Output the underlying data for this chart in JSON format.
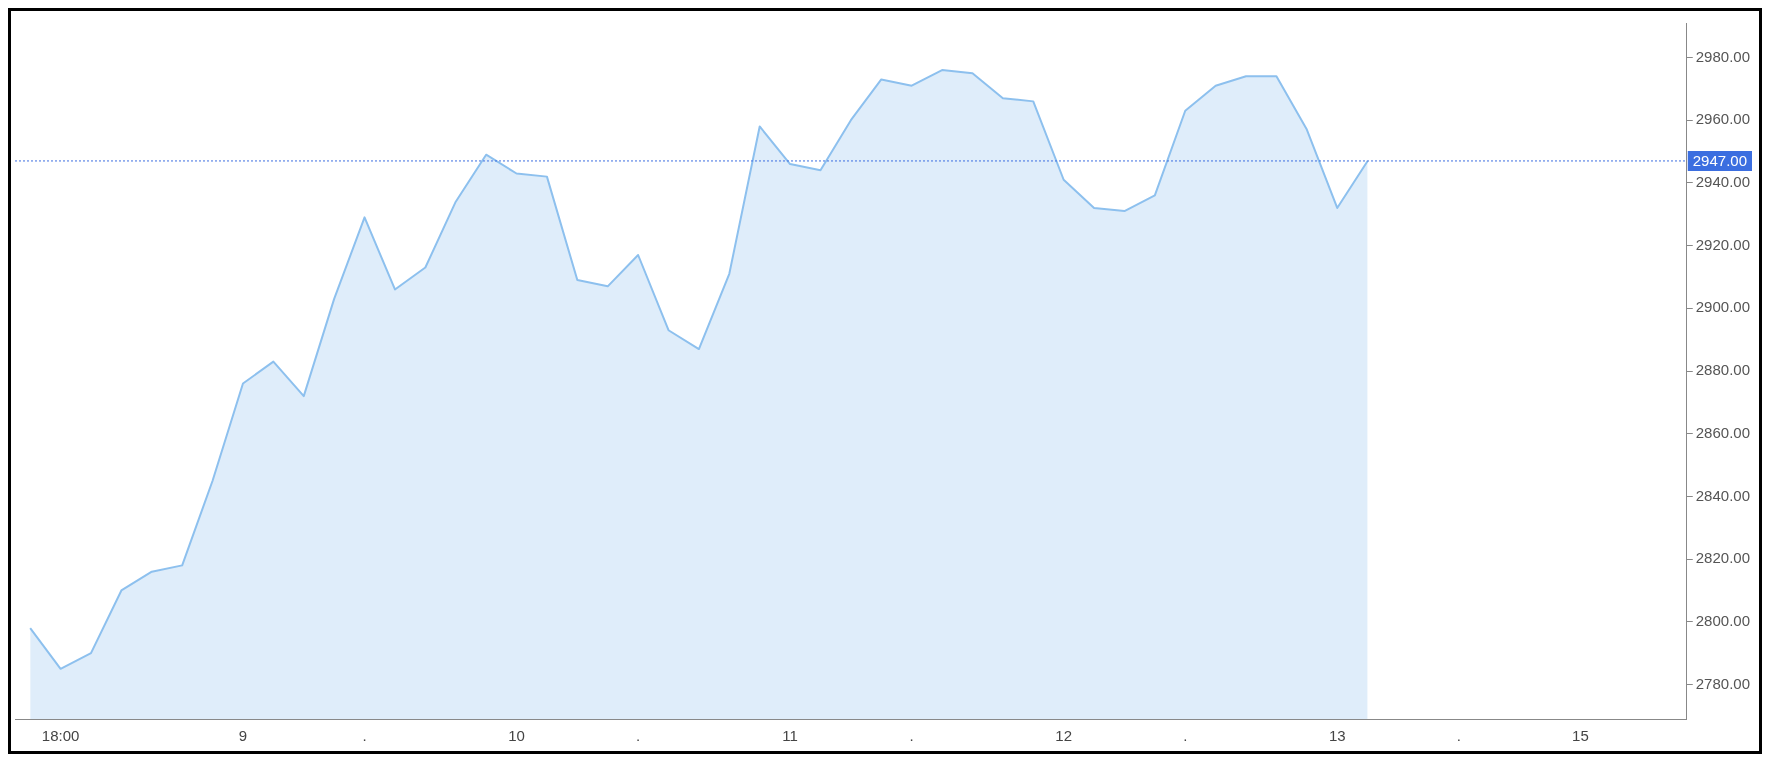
{
  "chart_data": {
    "type": "area",
    "categories": [
      null,
      "18:00",
      null,
      null,
      null,
      null,
      null,
      "9",
      null,
      null,
      null,
      ".",
      null,
      null,
      null,
      null,
      "10",
      null,
      null,
      null,
      ".",
      null,
      null,
      null,
      null,
      "11",
      null,
      null,
      null,
      ".",
      null,
      null,
      null,
      null,
      "12",
      null,
      null,
      null,
      ".",
      null,
      null,
      null,
      null,
      "13",
      null,
      null,
      null,
      ".",
      null,
      null,
      null,
      "15",
      null,
      null,
      null
    ],
    "series": [
      {
        "color": "#8dc0ee",
        "values": [
          2798,
          2785,
          2790,
          2810,
          2816,
          2818,
          2845,
          2876,
          2883,
          2872,
          2903,
          2929,
          2906,
          2913,
          2934,
          2949,
          2943,
          2942,
          2909,
          2907,
          2917,
          2893,
          2887,
          2911,
          2958,
          2946,
          2944,
          2960,
          2973,
          2971,
          2976,
          2975,
          2967,
          2966,
          2941,
          2932,
          2931,
          2936,
          2963,
          2971,
          2974,
          2974,
          2957,
          2932,
          2947,
          null,
          null,
          null,
          null,
          null,
          null,
          null,
          null,
          null,
          null
        ]
      }
    ],
    "ylim": [
      2769,
      2991
    ],
    "yticks": [
      {
        "value": 2780,
        "label": "2780.00"
      },
      {
        "value": 2800,
        "label": "2800.00"
      },
      {
        "value": 2820,
        "label": "2820.00"
      },
      {
        "value": 2840,
        "label": "2840.00"
      },
      {
        "value": 2860,
        "label": "2860.00"
      },
      {
        "value": 2880,
        "label": "2880.00"
      },
      {
        "value": 2900,
        "label": "2900.00"
      },
      {
        "value": 2920,
        "label": "2920.00"
      },
      {
        "value": 2940,
        "label": "2940.00"
      },
      {
        "value": 2960,
        "label": "2960.00"
      },
      {
        "value": 2980,
        "label": "2980.00"
      }
    ],
    "ref_lines": [
      {
        "axis": "y",
        "value": 2947,
        "label": "2947.00",
        "color": "#3b6ee0",
        "line_style": "dotted"
      }
    ],
    "grid": false,
    "legend": false
  }
}
